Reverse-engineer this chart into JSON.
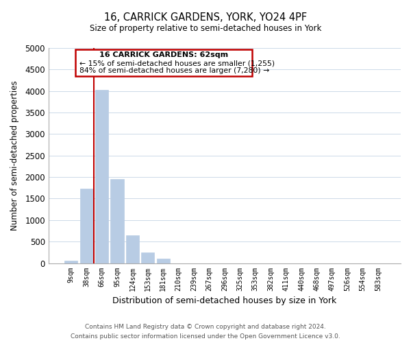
{
  "title": "16, CARRICK GARDENS, YORK, YO24 4PF",
  "subtitle": "Size of property relative to semi-detached houses in York",
  "xlabel": "Distribution of semi-detached houses by size in York",
  "ylabel": "Number of semi-detached properties",
  "bin_labels": [
    "9sqm",
    "38sqm",
    "66sqm",
    "95sqm",
    "124sqm",
    "153sqm",
    "181sqm",
    "210sqm",
    "239sqm",
    "267sqm",
    "296sqm",
    "325sqm",
    "353sqm",
    "382sqm",
    "411sqm",
    "440sqm",
    "468sqm",
    "497sqm",
    "526sqm",
    "554sqm",
    "583sqm"
  ],
  "bar_heights": [
    60,
    1730,
    4030,
    1950,
    650,
    245,
    100,
    0,
    0,
    0,
    0,
    0,
    0,
    0,
    0,
    0,
    0,
    0,
    0,
    0,
    0
  ],
  "bar_color": "#b8cce4",
  "highlight_color": "#c00000",
  "property_line_x": 1.5,
  "annotation_title": "16 CARRICK GARDENS: 62sqm",
  "annotation_line2": "← 15% of semi-detached houses are smaller (1,255)",
  "annotation_line3": "84% of semi-detached houses are larger (7,280) →",
  "ylim": [
    0,
    5000
  ],
  "yticks": [
    0,
    500,
    1000,
    1500,
    2000,
    2500,
    3000,
    3500,
    4000,
    4500,
    5000
  ],
  "footer_line1": "Contains HM Land Registry data © Crown copyright and database right 2024.",
  "footer_line2": "Contains public sector information licensed under the Open Government Licence v3.0.",
  "background_color": "#ffffff",
  "grid_color": "#ccd9e8"
}
